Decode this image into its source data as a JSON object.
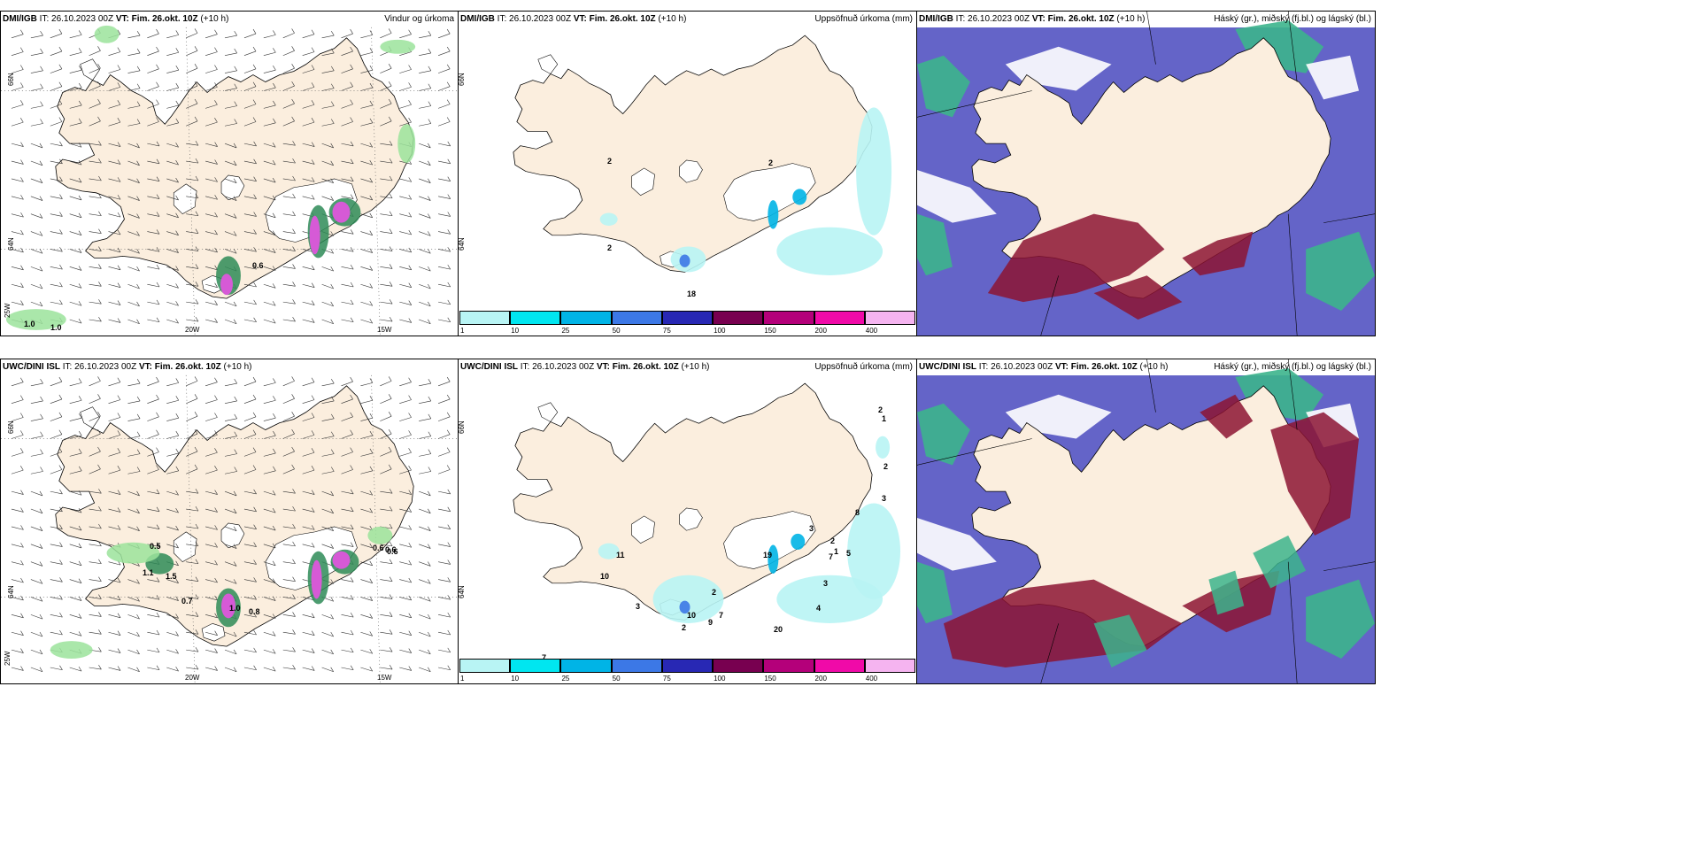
{
  "panels": [
    {
      "model": "DMI/IGB",
      "it_label": "IT:",
      "it": "26.10.2023 00Z",
      "vt_label": "VT: Fim. 26.okt. 10Z",
      "lead": "(+10 h)",
      "title": "Vindur og úrkoma",
      "kind": "wind",
      "axis": {
        "lon1": "20W",
        "lon2": "15W",
        "lat1": "66N",
        "lat2": "64N",
        "lat3": "25W"
      },
      "labels": [
        "0.6",
        "1.0",
        "1.0"
      ]
    },
    {
      "model": "DMI/IGB",
      "it_label": "IT:",
      "it": "26.10.2023 00Z",
      "vt_label": "VT: Fim. 26.okt. 10Z",
      "lead": "(+10 h)",
      "title": "Uppsöfnuð úrkoma (mm)",
      "kind": "accum",
      "axis": {
        "lat1": "66N",
        "lat2": "64N"
      },
      "labels": [
        "2",
        "2",
        "2",
        "18"
      ]
    },
    {
      "model": "DMI/IGB",
      "it_label": "IT:",
      "it": "26.10.2023 00Z",
      "vt_label": "VT: Fim. 26.okt. 10Z",
      "lead": "(+10 h)",
      "title": "Háský (gr.), miðský (fj.bl.) og lágský (bl.)",
      "kind": "cloud",
      "labels": []
    },
    {
      "model": "UWC/DINI ISL",
      "it_label": "IT:",
      "it": "26.10.2023 00Z",
      "vt_label": "VT: Fim. 26.okt. 10Z",
      "lead": "(+10 h)",
      "title": "",
      "kind": "wind",
      "axis": {
        "lon1": "20W",
        "lon2": "15W",
        "lat1": "66N",
        "lat2": "64N",
        "lat3": "25W"
      },
      "labels": [
        "0.5",
        "1.1",
        "1.5",
        "0.7",
        "1.0",
        "0.8",
        "0.6",
        "0.6",
        "0.6"
      ]
    },
    {
      "model": "UWC/DINI ISL",
      "it_label": "IT:",
      "it": "26.10.2023 00Z",
      "vt_label": "VT: Fim. 26.okt. 10Z",
      "lead": "(+10 h)",
      "title": "Uppsöfnuð úrkoma (mm)",
      "kind": "accum",
      "axis": {
        "lat1": "66N",
        "lat2": "64N"
      },
      "labels": [
        "2",
        "1",
        "2",
        "3",
        "3",
        "2",
        "5",
        "19",
        "11",
        "10",
        "3",
        "2",
        "10",
        "9",
        "7",
        "7",
        "1",
        "3",
        "4",
        "20",
        "2",
        "7",
        "8"
      ]
    },
    {
      "model": "UWC/DINI ISL",
      "it_label": "IT:",
      "it": "26.10.2023 00Z",
      "vt_label": "VT: Fim. 26.okt. 10Z",
      "lead": "(+10 h)",
      "title": "Háský (gr.), miðský (fj.bl.) og lágský (bl.)",
      "kind": "cloud",
      "labels": []
    }
  ],
  "colorbar": {
    "ticks": [
      "1",
      "10",
      "25",
      "50",
      "75",
      "100",
      "150",
      "200",
      "400"
    ],
    "colors": [
      "#b8f4f4",
      "#00e6f0",
      "#00b4e6",
      "#3c78e6",
      "#2828b4",
      "#780050",
      "#b4007a",
      "#f00aa8",
      "#f5b4f0"
    ]
  },
  "colors": {
    "land": "#fbeede",
    "ocean": "#ffffff",
    "wind_precip": "#9be39b",
    "accum_light": "#b8f4f4",
    "cloud_high": "#3cb48c",
    "cloud_mid": "#6464c8",
    "cloud_low": "#8c1432"
  }
}
